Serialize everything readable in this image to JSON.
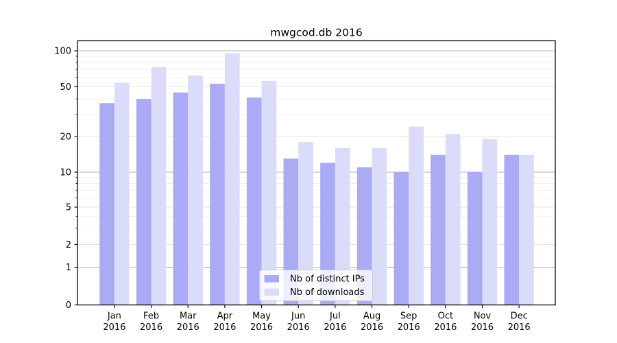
{
  "page": {
    "background": "#ffffff"
  },
  "chart_data": {
    "type": "bar",
    "title": "mwgcod.db 2016",
    "xlabel": "",
    "ylabel": "",
    "categories": [
      "Jan 2016",
      "Feb 2016",
      "Mar 2016",
      "Apr 2016",
      "May 2016",
      "Jun 2016",
      "Jul 2016",
      "Aug 2016",
      "Sep 2016",
      "Oct 2016",
      "Nov 2016",
      "Dec 2016"
    ],
    "series": [
      {
        "name": "Nb of distinct IPs",
        "color": "#aaaaf5",
        "values": [
          37,
          40,
          45,
          53,
          41,
          13,
          12,
          11,
          10,
          14,
          10,
          14
        ]
      },
      {
        "name": "Nb of downloads",
        "color": "#dbdbfa",
        "values": [
          54,
          73,
          62,
          95,
          56,
          18,
          16,
          16,
          24,
          21,
          19,
          14
        ]
      }
    ],
    "yscale": "symlog",
    "ylim": [
      0,
      110
    ],
    "y_ticks_labeled": [
      0,
      1,
      2,
      5,
      10,
      20,
      50,
      100
    ],
    "y_ticks_minor": [
      3,
      4,
      6,
      7,
      8,
      9,
      30,
      40,
      60,
      70,
      80,
      90
    ],
    "grid": true,
    "legend_position": "lower-center-inside"
  },
  "legend": {
    "items": [
      {
        "label": "Nb of distinct IPs",
        "color": "#aaaaf5"
      },
      {
        "label": "Nb of downloads",
        "color": "#dbdbfa"
      }
    ]
  },
  "colors": {
    "axis": "#000000",
    "major_grid": "#b0b0b0",
    "labeled_minor_grid": "#e4e4e4",
    "minor_grid": "#ededed",
    "legend_border": "#cccccc",
    "legend_fill": "rgba(255,255,255,0.8)"
  }
}
